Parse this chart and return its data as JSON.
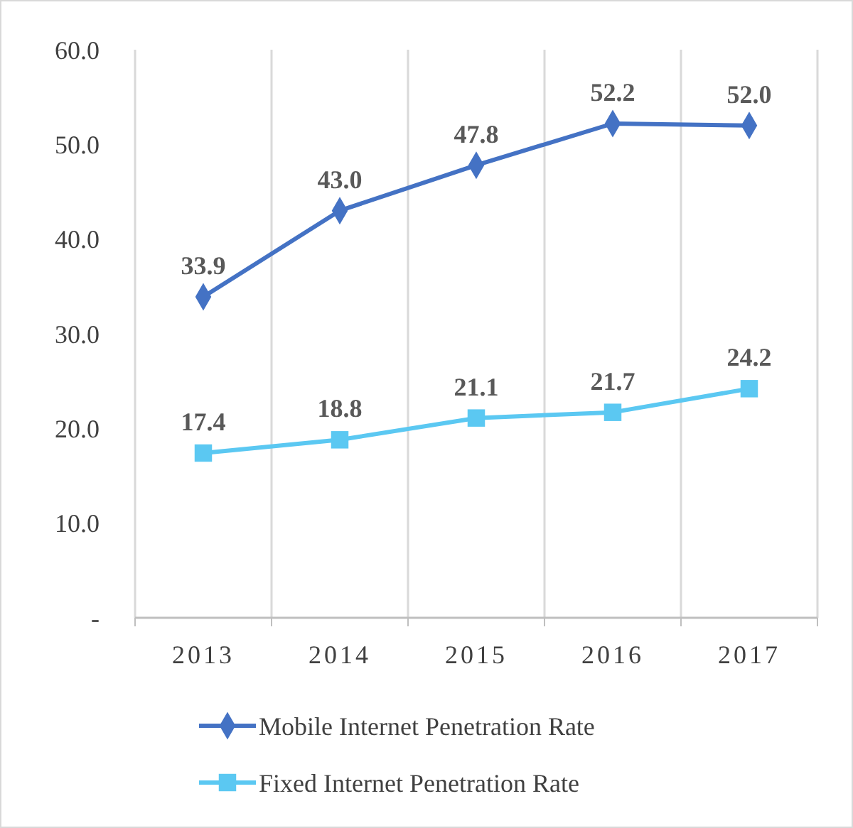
{
  "chart_data": {
    "type": "line",
    "categories": [
      "2013",
      "2014",
      "2015",
      "2016",
      "2017"
    ],
    "series": [
      {
        "name": "Mobile Internet Penetration Rate",
        "color": "#4472c4",
        "marker": "diamond",
        "values": [
          33.9,
          43.0,
          47.8,
          52.2,
          52.0
        ],
        "value_labels": [
          "33.9",
          "43.0",
          "47.8",
          "52.2",
          "52.0"
        ]
      },
      {
        "name": "Fixed Internet Penetration Rate",
        "color": "#5bc8f2",
        "marker": "square",
        "values": [
          17.4,
          18.8,
          21.1,
          21.7,
          24.2
        ],
        "value_labels": [
          "17.4",
          "18.8",
          "21.1",
          "21.7",
          "24.2"
        ]
      }
    ],
    "ylim": [
      0,
      60
    ],
    "yticks": [
      {
        "value": 0,
        "label": "-"
      },
      {
        "value": 10,
        "label": "10.0"
      },
      {
        "value": 20,
        "label": "20.0"
      },
      {
        "value": 30,
        "label": "30.0"
      },
      {
        "value": 40,
        "label": "40.0"
      },
      {
        "value": 50,
        "label": "50.0"
      },
      {
        "value": 60,
        "label": "60.0"
      }
    ],
    "grid": "x",
    "legend": "bottom",
    "line_style": "solid"
  }
}
